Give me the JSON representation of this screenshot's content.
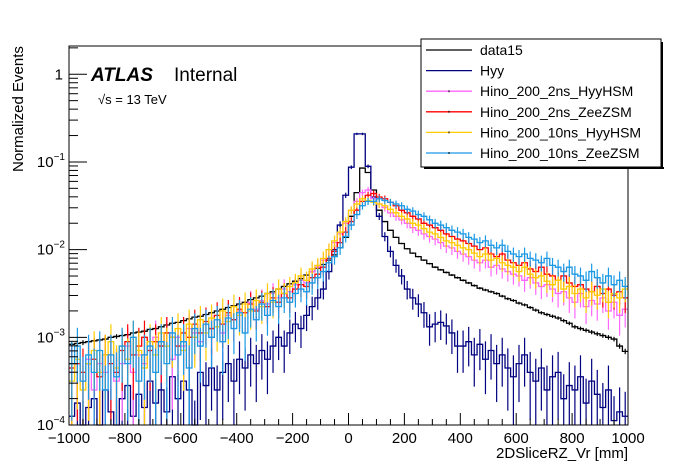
{
  "chart_data": {
    "type": "line",
    "style": "histogram-step-with-errors",
    "title": "",
    "xlabel": "2DSliceRZ_Vr [mm]",
    "ylabel": "Normalized Events",
    "xlim": [
      -1000,
      1000
    ],
    "ylim": [
      0.0001,
      2.1
    ],
    "yscale": "log",
    "grid": false,
    "legend_position": "top-right",
    "annotations": {
      "experiment": "ATLAS",
      "status": "Internal",
      "energy": "√s = 13 TeV"
    },
    "x_ticks": [
      "−1000",
      "−800",
      "−600",
      "−400",
      "−200",
      "0",
      "200",
      "400",
      "600",
      "800",
      "1000"
    ],
    "x_tick_values": [
      -1000,
      -800,
      -600,
      -400,
      -200,
      0,
      200,
      400,
      600,
      800,
      1000
    ],
    "y_ticks": [
      {
        "value": 1,
        "label": "1",
        "exp": ""
      },
      {
        "value": 0.1,
        "label": "10",
        "exp": "−1"
      },
      {
        "value": 0.01,
        "label": "10",
        "exp": "−2"
      },
      {
        "value": 0.001,
        "label": "10",
        "exp": "−3"
      },
      {
        "value": 0.0001,
        "label": "10",
        "exp": "−4"
      }
    ],
    "bin_width": 20,
    "x_bin_low_edges_start": -1000,
    "series": [
      {
        "name": "data15",
        "color": "#000000",
        "log10_values": [
          -3.08,
          -3.07,
          -3.06,
          -3.05,
          -3.04,
          -3.03,
          -3.02,
          -3.0,
          -2.99,
          -2.98,
          -2.97,
          -2.95,
          -2.94,
          -2.93,
          -2.91,
          -2.9,
          -2.88,
          -2.86,
          -2.84,
          -2.83,
          -2.81,
          -2.79,
          -2.77,
          -2.76,
          -2.74,
          -2.72,
          -2.7,
          -2.68,
          -2.66,
          -2.64,
          -2.62,
          -2.6,
          -2.57,
          -2.55,
          -2.53,
          -2.5,
          -2.48,
          -2.45,
          -2.42,
          -2.39,
          -2.36,
          -2.33,
          -2.29,
          -2.25,
          -2.21,
          -2.17,
          -2.12,
          -2.06,
          -1.98,
          -1.86,
          -1.62,
          -1.35,
          -1.07,
          -1.12,
          -1.32,
          -1.55,
          -1.68,
          -1.78,
          -1.86,
          -1.93,
          -1.99,
          -2.04,
          -2.08,
          -2.12,
          -2.16,
          -2.2,
          -2.23,
          -2.26,
          -2.29,
          -2.32,
          -2.35,
          -2.38,
          -2.41,
          -2.44,
          -2.46,
          -2.48,
          -2.5,
          -2.53,
          -2.56,
          -2.58,
          -2.61,
          -2.63,
          -2.66,
          -2.69,
          -2.72,
          -2.74,
          -2.76,
          -2.78,
          -2.81,
          -2.84,
          -2.88,
          -2.9,
          -2.92,
          -2.94,
          -2.96,
          -2.98,
          -3.0,
          -3.02,
          -3.1,
          -3.16
        ]
      },
      {
        "name": "Hyy",
        "color": "#000080",
        "log10_values": [
          -3.9,
          -3.75,
          -4.0,
          -3.8,
          -3.7,
          -4.0,
          -3.6,
          -3.85,
          -4.0,
          -3.7,
          -3.55,
          -3.9,
          -3.65,
          -3.8,
          -3.5,
          -3.75,
          -3.6,
          -3.85,
          -3.45,
          -3.7,
          -3.5,
          -3.6,
          -4.0,
          -3.4,
          -3.55,
          -3.35,
          -3.6,
          -3.4,
          -3.3,
          -3.5,
          -3.25,
          -3.35,
          -3.2,
          -3.3,
          -3.15,
          -3.25,
          -3.1,
          -3.0,
          -3.1,
          -2.95,
          -2.85,
          -2.9,
          -2.75,
          -2.65,
          -2.55,
          -2.45,
          -2.25,
          -2.0,
          -1.72,
          -1.38,
          -1.06,
          -0.68,
          -0.68,
          -1.05,
          -1.4,
          -1.62,
          -1.85,
          -2.02,
          -2.18,
          -2.3,
          -2.45,
          -2.55,
          -2.62,
          -2.72,
          -2.88,
          -2.85,
          -2.83,
          -2.87,
          -2.95,
          -3.1,
          -3.1,
          -3.05,
          -3.2,
          -3.08,
          -3.25,
          -3.15,
          -3.3,
          -3.2,
          -3.35,
          -3.45,
          -3.3,
          -3.2,
          -3.4,
          -3.5,
          -3.35,
          -3.6,
          -3.45,
          -3.4,
          -3.7,
          -3.55,
          -3.6,
          -3.45,
          -3.75,
          -3.5,
          -3.65,
          -3.8,
          -3.6,
          -3.95,
          -3.85,
          -3.9
        ]
      },
      {
        "name": "Hino_200_2ns_HyyHSM",
        "color": "#ff66ff",
        "log10_values": [
          -3.4,
          -3.3,
          -3.5,
          -3.25,
          -3.6,
          -3.3,
          -3.4,
          -3.2,
          -3.5,
          -3.3,
          -3.1,
          -3.4,
          -3.2,
          -3.3,
          -3.15,
          -3.0,
          -3.1,
          -2.95,
          -3.25,
          -3.0,
          -3.1,
          -2.9,
          -2.95,
          -3.05,
          -2.85,
          -2.9,
          -2.8,
          -2.95,
          -2.75,
          -2.8,
          -2.7,
          -2.72,
          -2.6,
          -2.68,
          -2.58,
          -2.62,
          -2.5,
          -2.55,
          -2.45,
          -2.48,
          -2.4,
          -2.35,
          -2.38,
          -2.25,
          -2.2,
          -2.12,
          -2.0,
          -1.92,
          -1.82,
          -1.7,
          -1.55,
          -1.45,
          -1.35,
          -1.32,
          -1.42,
          -1.48,
          -1.52,
          -1.58,
          -1.62,
          -1.66,
          -1.7,
          -1.75,
          -1.78,
          -1.82,
          -1.85,
          -1.88,
          -1.92,
          -1.96,
          -1.98,
          -2.02,
          -2.05,
          -2.08,
          -2.12,
          -2.15,
          -2.12,
          -2.2,
          -2.18,
          -2.22,
          -2.25,
          -2.28,
          -2.3,
          -2.35,
          -2.32,
          -2.38,
          -2.42,
          -2.4,
          -2.45,
          -2.5,
          -2.48,
          -2.55,
          -2.6,
          -2.5,
          -2.65,
          -2.58,
          -2.62,
          -2.55,
          -2.7,
          -2.6,
          -2.75,
          -2.68
        ]
      },
      {
        "name": "Hino_200_2ns_ZeeZSM",
        "color": "#ff0000",
        "log10_values": [
          -3.35,
          -3.3,
          -3.4,
          -3.3,
          -3.25,
          -3.45,
          -3.2,
          -3.3,
          -3.4,
          -3.15,
          -3.05,
          -3.2,
          -3.1,
          -3.0,
          -3.15,
          -3.05,
          -3.1,
          -2.95,
          -3.0,
          -3.1,
          -2.95,
          -3.0,
          -2.85,
          -2.95,
          -2.82,
          -2.9,
          -2.75,
          -2.85,
          -2.72,
          -2.8,
          -2.68,
          -2.72,
          -2.62,
          -2.7,
          -2.6,
          -2.65,
          -2.55,
          -2.6,
          -2.5,
          -2.55,
          -2.45,
          -2.4,
          -2.42,
          -2.32,
          -2.28,
          -2.2,
          -2.1,
          -2.02,
          -1.92,
          -1.8,
          -1.68,
          -1.55,
          -1.45,
          -1.38,
          -1.36,
          -1.4,
          -1.42,
          -1.46,
          -1.5,
          -1.55,
          -1.58,
          -1.62,
          -1.65,
          -1.7,
          -1.72,
          -1.75,
          -1.78,
          -1.82,
          -1.85,
          -1.88,
          -1.9,
          -1.93,
          -1.96,
          -2.0,
          -1.98,
          -2.05,
          -2.08,
          -2.05,
          -2.12,
          -2.15,
          -2.18,
          -2.15,
          -2.22,
          -2.25,
          -2.2,
          -2.28,
          -2.3,
          -2.35,
          -2.3,
          -2.38,
          -2.42,
          -2.4,
          -2.45,
          -2.48,
          -2.42,
          -2.5,
          -2.45,
          -2.52,
          -2.48,
          -2.55
        ]
      },
      {
        "name": "Hino_200_10ns_HyyHSM",
        "color": "#ffcc00",
        "log10_values": [
          -3.5,
          -3.25,
          -3.6,
          -3.3,
          -3.15,
          -3.4,
          -3.2,
          -3.05,
          -3.35,
          -3.1,
          -3.25,
          -3.0,
          -3.15,
          -3.35,
          -3.05,
          -3.2,
          -2.95,
          -3.1,
          -3.0,
          -2.9,
          -3.15,
          -2.85,
          -3.0,
          -2.8,
          -2.95,
          -2.78,
          -2.88,
          -2.7,
          -2.82,
          -2.65,
          -2.75,
          -2.62,
          -2.7,
          -2.58,
          -2.65,
          -2.5,
          -2.6,
          -2.45,
          -2.5,
          -2.42,
          -2.38,
          -2.3,
          -2.35,
          -2.22,
          -2.18,
          -2.1,
          -2.0,
          -1.9,
          -1.8,
          -1.68,
          -1.55,
          -1.48,
          -1.42,
          -1.44,
          -1.46,
          -1.48,
          -1.5,
          -1.54,
          -1.58,
          -1.62,
          -1.65,
          -1.7,
          -1.72,
          -1.76,
          -1.8,
          -1.82,
          -1.86,
          -1.9,
          -1.92,
          -1.95,
          -1.98,
          -2.0,
          -2.04,
          -2.08,
          -2.05,
          -2.12,
          -2.1,
          -2.15,
          -2.18,
          -2.2,
          -2.25,
          -2.2,
          -2.28,
          -2.32,
          -2.3,
          -2.36,
          -2.4,
          -2.35,
          -2.45,
          -2.42,
          -2.5,
          -2.45,
          -2.55,
          -2.48,
          -2.52,
          -2.45,
          -2.6,
          -2.5,
          -2.55,
          -2.45
        ]
      },
      {
        "name": "Hino_200_10ns_ZeeZSM",
        "color": "#1a99e6",
        "log10_values": [
          -3.3,
          -3.1,
          -3.5,
          -3.2,
          -3.4,
          -3.15,
          -3.6,
          -3.2,
          -3.45,
          -3.1,
          -3.3,
          -3.0,
          -3.5,
          -3.2,
          -3.1,
          -3.4,
          -3.05,
          -3.3,
          -2.95,
          -3.2,
          -3.05,
          -3.35,
          -2.9,
          -3.1,
          -2.85,
          -3.0,
          -2.8,
          -3.05,
          -2.78,
          -2.9,
          -2.72,
          -2.95,
          -2.68,
          -2.8,
          -2.62,
          -2.75,
          -2.58,
          -2.65,
          -2.55,
          -2.6,
          -2.5,
          -2.45,
          -2.48,
          -2.38,
          -2.32,
          -2.25,
          -2.15,
          -2.08,
          -1.98,
          -1.85,
          -1.72,
          -1.6,
          -1.5,
          -1.45,
          -1.45,
          -1.42,
          -1.44,
          -1.46,
          -1.48,
          -1.5,
          -1.54,
          -1.56,
          -1.6,
          -1.62,
          -1.66,
          -1.7,
          -1.72,
          -1.75,
          -1.78,
          -1.8,
          -1.82,
          -1.86,
          -1.88,
          -1.92,
          -1.9,
          -1.95,
          -1.98,
          -1.95,
          -2.02,
          -2.05,
          -2.08,
          -2.05,
          -2.1,
          -2.12,
          -2.15,
          -2.1,
          -2.18,
          -2.2,
          -2.25,
          -2.2,
          -2.28,
          -2.3,
          -2.35,
          -2.25,
          -2.32,
          -2.38,
          -2.3,
          -2.4,
          -2.35,
          -2.42
        ]
      }
    ]
  }
}
